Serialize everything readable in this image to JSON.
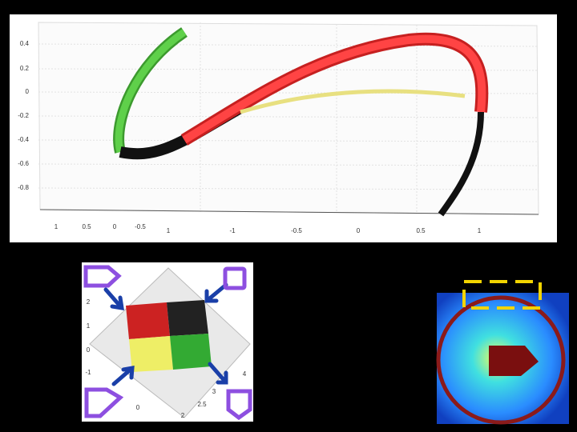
{
  "top_plot": {
    "y_tick_labels": [
      "0.4",
      "0.2",
      "0",
      "-0.2",
      "-0.4",
      "-0.6",
      "-0.8"
    ],
    "x_tick_labels_back": [
      "1",
      "0.5",
      "0",
      "-0.5"
    ],
    "x_tick_labels_front": [
      "1",
      "-1",
      "-0.5",
      "0",
      "0.5",
      "1"
    ]
  },
  "small_plot": {
    "left_tick_labels": [
      "2",
      "1",
      "0",
      "-1"
    ],
    "bottom_tick_labels": [
      "0",
      "2",
      "2.5",
      "3",
      "4"
    ]
  }
}
